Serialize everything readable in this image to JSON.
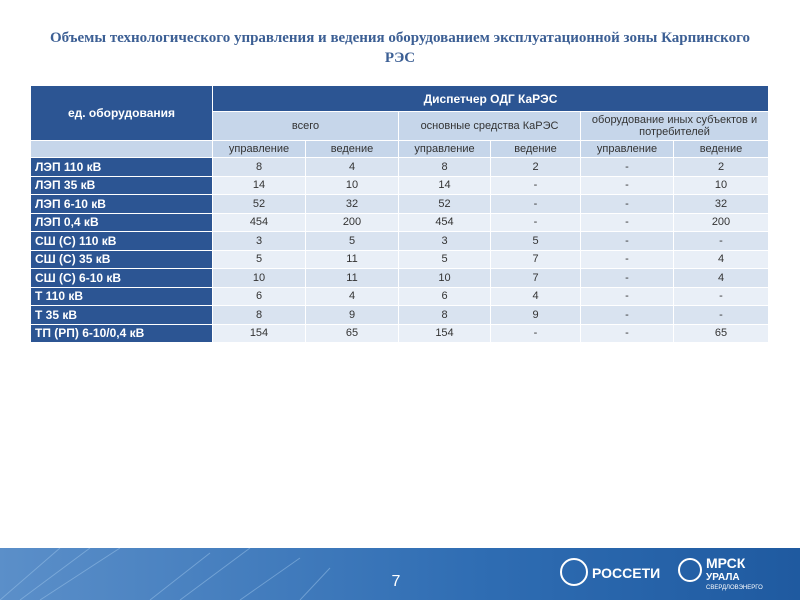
{
  "title": "Объемы технологического управления и ведения оборудованием эксплуатационной зоны Карпинского РЭС",
  "table": {
    "corner": "ед. оборудования",
    "group": "Диспетчер ОДГ КаРЭС",
    "subgroups": [
      "всего",
      "основные средства КаРЭС",
      "оборудование иных субъектов и потребителей"
    ],
    "columns": [
      "управление",
      "ведение",
      "управление",
      "ведение",
      "управление",
      "ведение"
    ],
    "rows": [
      [
        "ЛЭП 110 кВ",
        "8",
        "4",
        "8",
        "2",
        "-",
        "2"
      ],
      [
        "ЛЭП 35 кВ",
        "14",
        "10",
        "14",
        "-",
        "-",
        "10"
      ],
      [
        "ЛЭП 6-10 кВ",
        "52",
        "32",
        "52",
        "-",
        "-",
        "32"
      ],
      [
        "ЛЭП 0,4 кВ",
        "454",
        "200",
        "454",
        "-",
        "-",
        "200"
      ],
      [
        "СШ (С) 110 кВ",
        "3",
        "5",
        "3",
        "5",
        "-",
        "-"
      ],
      [
        "СШ (С) 35 кВ",
        "5",
        "11",
        "5",
        "7",
        "-",
        "4"
      ],
      [
        "СШ (С) 6-10 кВ",
        "10",
        "11",
        "10",
        "7",
        "-",
        "4"
      ],
      [
        "Т 110 кВ",
        "6",
        "4",
        "6",
        "4",
        "-",
        "-"
      ],
      [
        "Т 35 кВ",
        "8",
        "9",
        "8",
        "9",
        "-",
        "-"
      ],
      [
        "ТП (РП) 6-10/0,4 кВ",
        "154",
        "65",
        "154",
        "-",
        "-",
        "65"
      ]
    ]
  },
  "footer": {
    "page_number": "7",
    "logos": [
      "РОССЕТИ",
      "МРСК",
      "УРАЛА",
      "СВЕРДЛОВЭНЕРГО"
    ]
  }
}
